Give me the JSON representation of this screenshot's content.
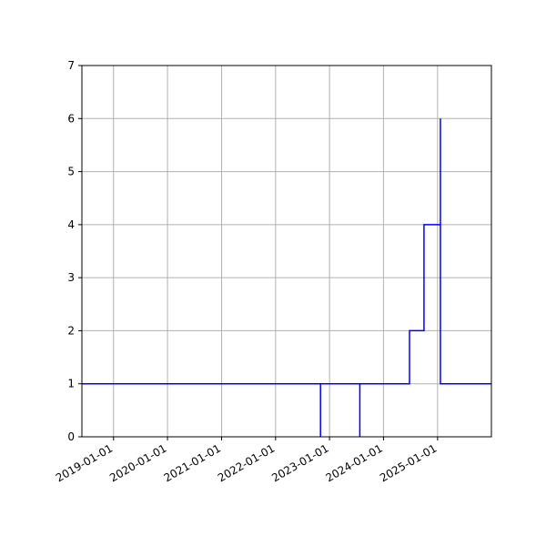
{
  "chart_data": {
    "type": "line",
    "step": "post",
    "title": "",
    "xlabel": "",
    "ylabel": "",
    "x_is_date": true,
    "xlim": [
      "2018-06-01",
      "2025-12-31"
    ],
    "ylim": [
      0,
      7
    ],
    "grid": true,
    "line_color": "#0000ff",
    "grid_color": "#b0b0b0",
    "x_ticks": [
      "2019-01-01",
      "2020-01-01",
      "2021-01-01",
      "2022-01-01",
      "2023-01-01",
      "2024-01-01",
      "2025-01-01"
    ],
    "x_tick_labels": [
      "2019-01-01",
      "2020-01-01",
      "2021-01-01",
      "2022-01-01",
      "2023-01-01",
      "2024-01-01",
      "2025-01-01"
    ],
    "y_ticks": [
      0,
      1,
      2,
      3,
      4,
      5,
      6,
      7
    ],
    "y_tick_labels": [
      "0",
      "1",
      "2",
      "3",
      "4",
      "5",
      "6",
      "7"
    ],
    "series": [
      {
        "x": [
          "2018-06-01",
          "2022-11-01",
          "2022-11-01",
          "2023-07-25",
          "2023-07-25",
          "2024-06-25",
          "2024-10-01",
          "2025-01-20",
          "2025-01-20",
          "2025-12-31"
        ],
        "values": [
          1,
          0,
          1,
          0,
          1,
          2,
          4,
          6,
          1,
          1
        ]
      }
    ]
  }
}
